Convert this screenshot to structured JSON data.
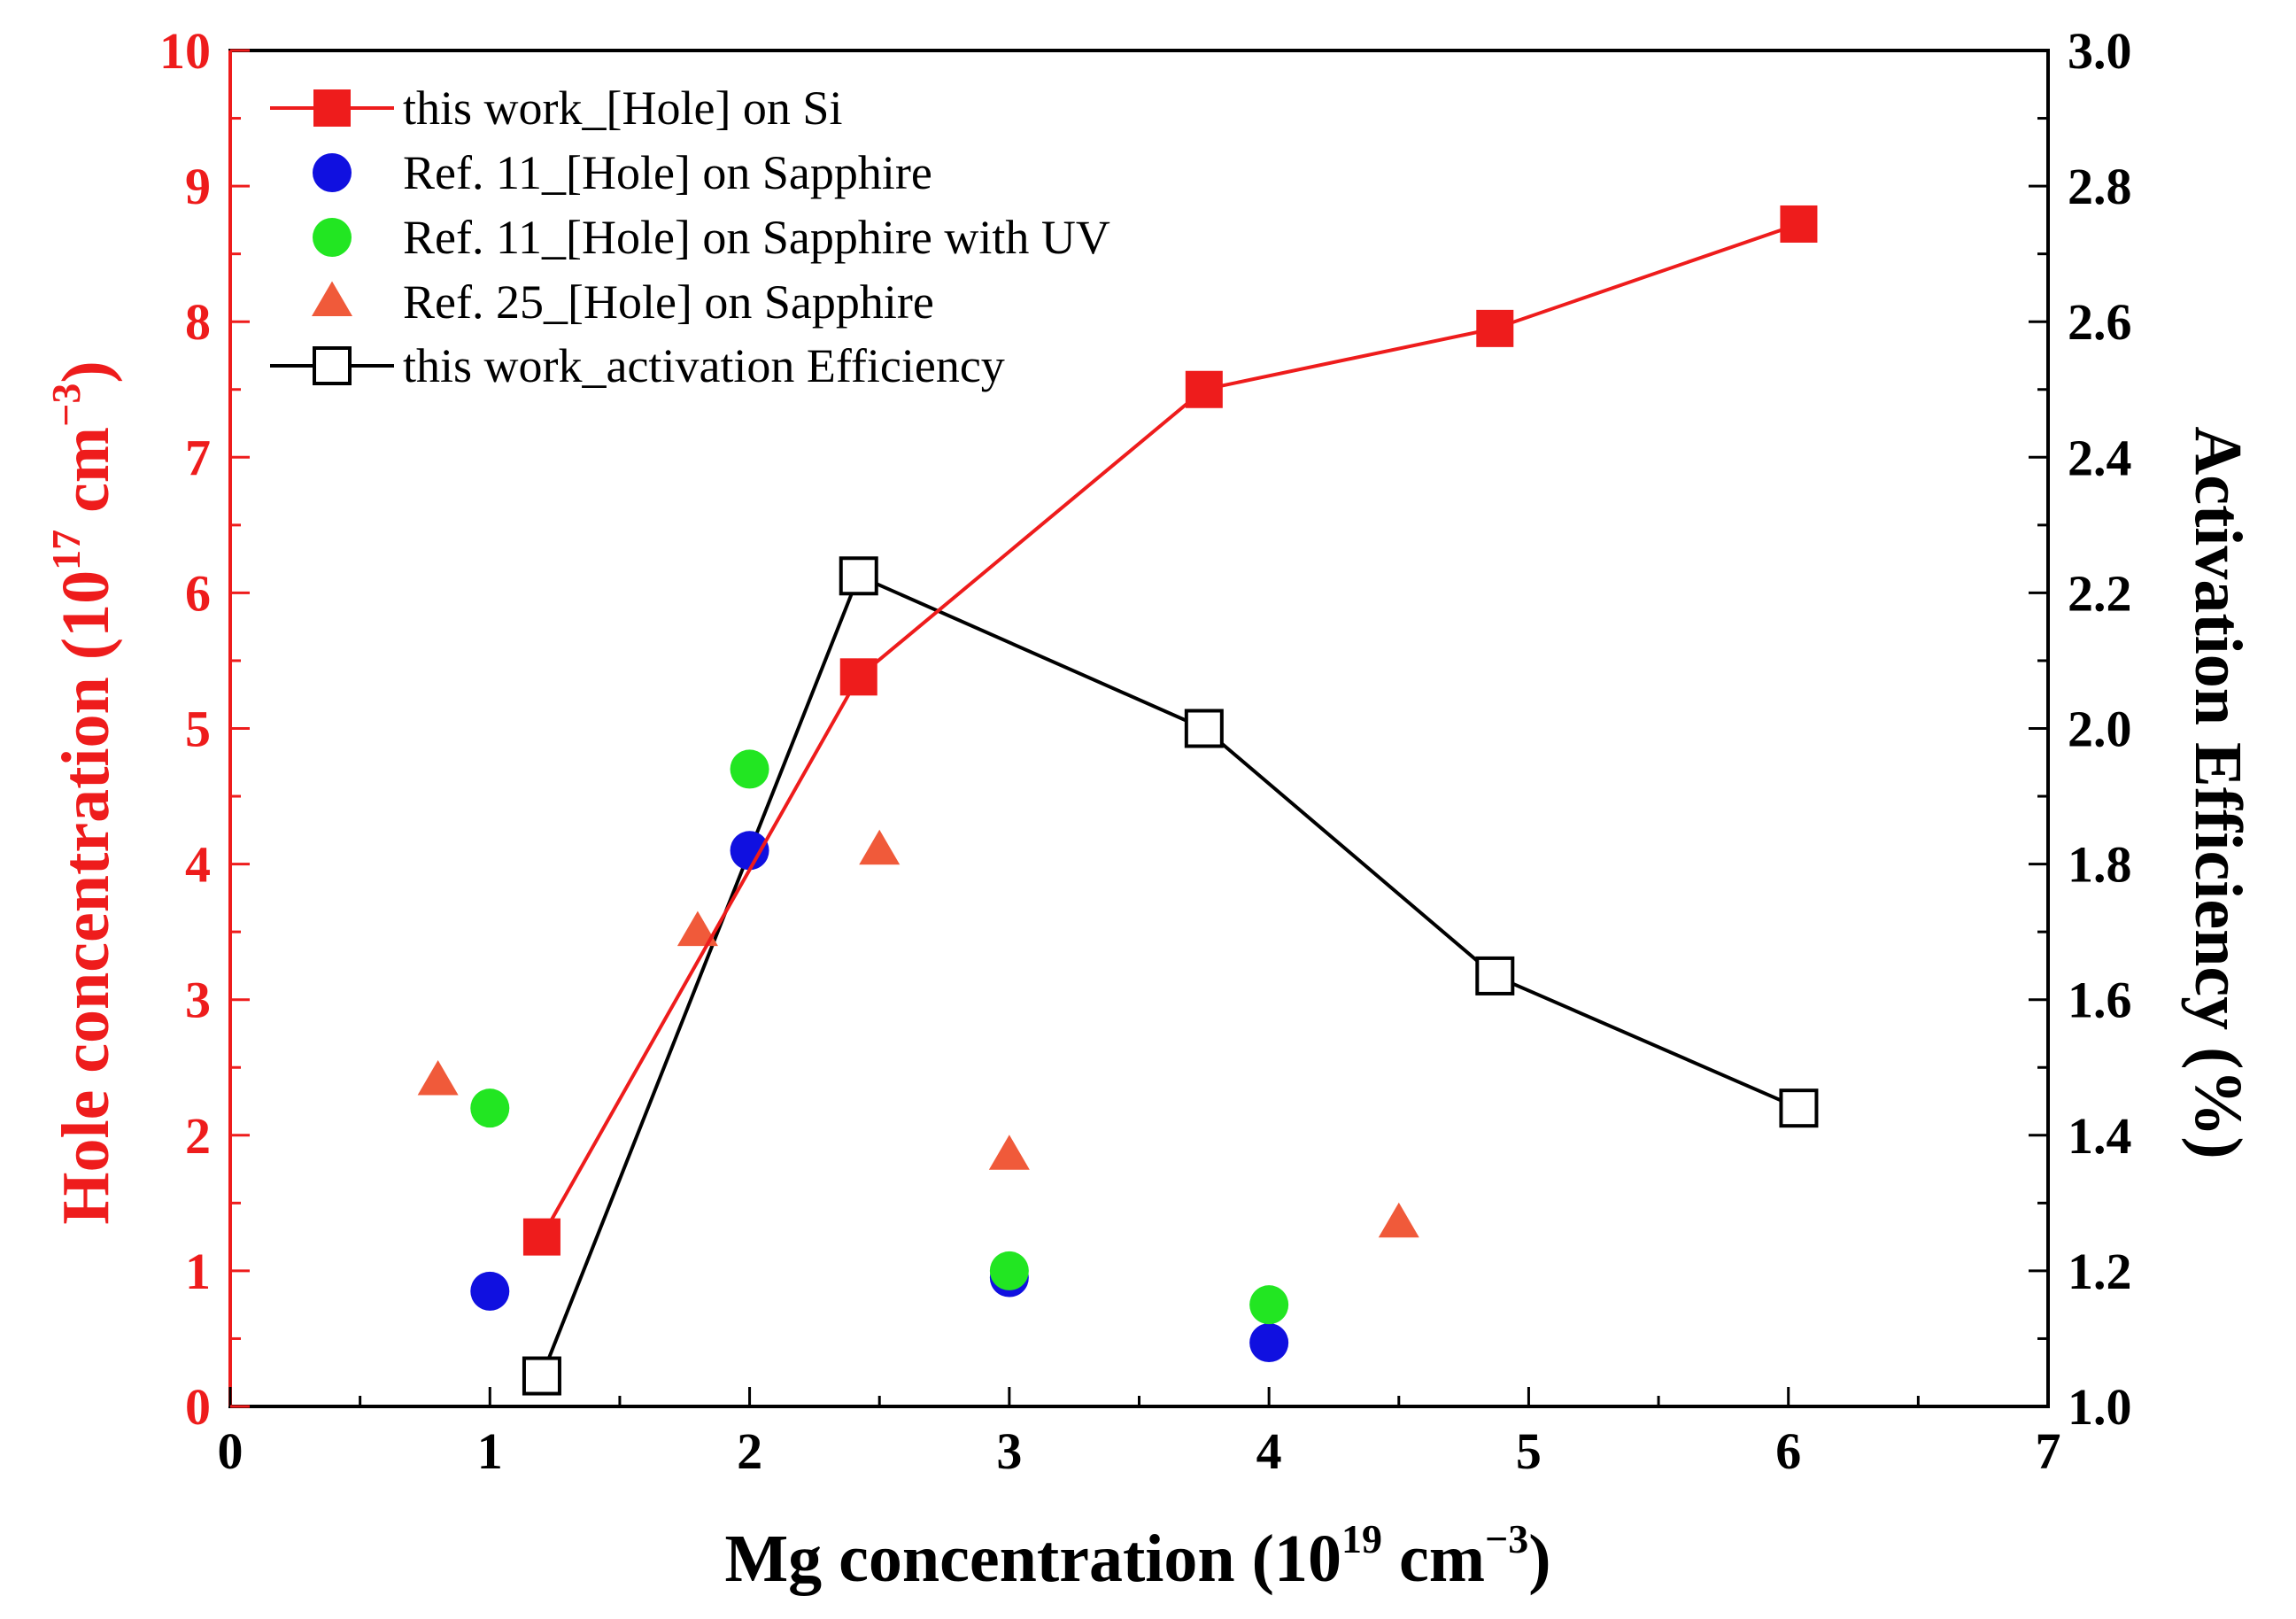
{
  "chart_data": {
    "type": "scatter",
    "xlabel": "Mg  concentration (10",
    "xlabel_sup": "19",
    "xlabel_mid": " cm",
    "xlabel_sup2": "−3",
    "xlabel_end": ")",
    "ylabel_left": "Hole concentration (10",
    "ylabel_left_sup": "17",
    "ylabel_left_mid": " cm",
    "ylabel_left_sup2": "−3",
    "ylabel_left_end": ")",
    "ylabel_right": "Activation Efficiency (%)",
    "xlim": [
      0,
      7
    ],
    "ylim_left": [
      0,
      10
    ],
    "ylim_right": [
      1.0,
      3.0
    ],
    "x_ticks": [
      "0",
      "1",
      "2",
      "3",
      "4",
      "5",
      "6",
      "7"
    ],
    "y_left_ticks": [
      "0",
      "1",
      "2",
      "3",
      "4",
      "5",
      "6",
      "7",
      "8",
      "9",
      "10"
    ],
    "y_right_ticks": [
      "1.0",
      "1.2",
      "1.4",
      "1.6",
      "1.8",
      "2.0",
      "2.2",
      "2.4",
      "2.6",
      "2.8",
      "3.0"
    ],
    "series": [
      {
        "name": "this work_[Hole] on Si",
        "axis": "left",
        "marker": "filled-square",
        "line": true,
        "color": "#ee1c1c",
        "x": [
          1.2,
          2.42,
          3.75,
          4.87,
          6.04
        ],
        "y": [
          1.25,
          5.38,
          7.5,
          7.95,
          8.72
        ]
      },
      {
        "name": "Ref. 11_[Hole] on Sapphire",
        "axis": "left",
        "marker": "circle",
        "line": false,
        "color": "#1010e0",
        "x": [
          1.0,
          2.0,
          3.0,
          4.0
        ],
        "y": [
          0.85,
          4.1,
          0.95,
          0.47
        ]
      },
      {
        "name": "Ref. 11_[Hole] on Sapphire with UV",
        "axis": "left",
        "marker": "circle",
        "line": false,
        "color": "#22e622",
        "x": [
          1.0,
          2.0,
          3.0,
          4.0
        ],
        "y": [
          2.2,
          4.7,
          1.0,
          0.75
        ]
      },
      {
        "name": "Ref. 25_[Hole] on Sapphire",
        "axis": "left",
        "marker": "triangle",
        "line": false,
        "color": "#f05a3a",
        "x": [
          0.8,
          1.8,
          2.5,
          3.0,
          4.5
        ],
        "y": [
          2.4,
          3.5,
          4.1,
          1.85,
          1.35
        ]
      },
      {
        "name": "this work_activation Efficiency",
        "axis": "right",
        "marker": "open-square",
        "line": true,
        "color": "#000000",
        "x": [
          1.2,
          2.42,
          3.75,
          4.87,
          6.04
        ],
        "y": [
          1.045,
          2.225,
          2.0,
          1.635,
          1.44
        ]
      }
    ],
    "legend_position": "top-left"
  }
}
